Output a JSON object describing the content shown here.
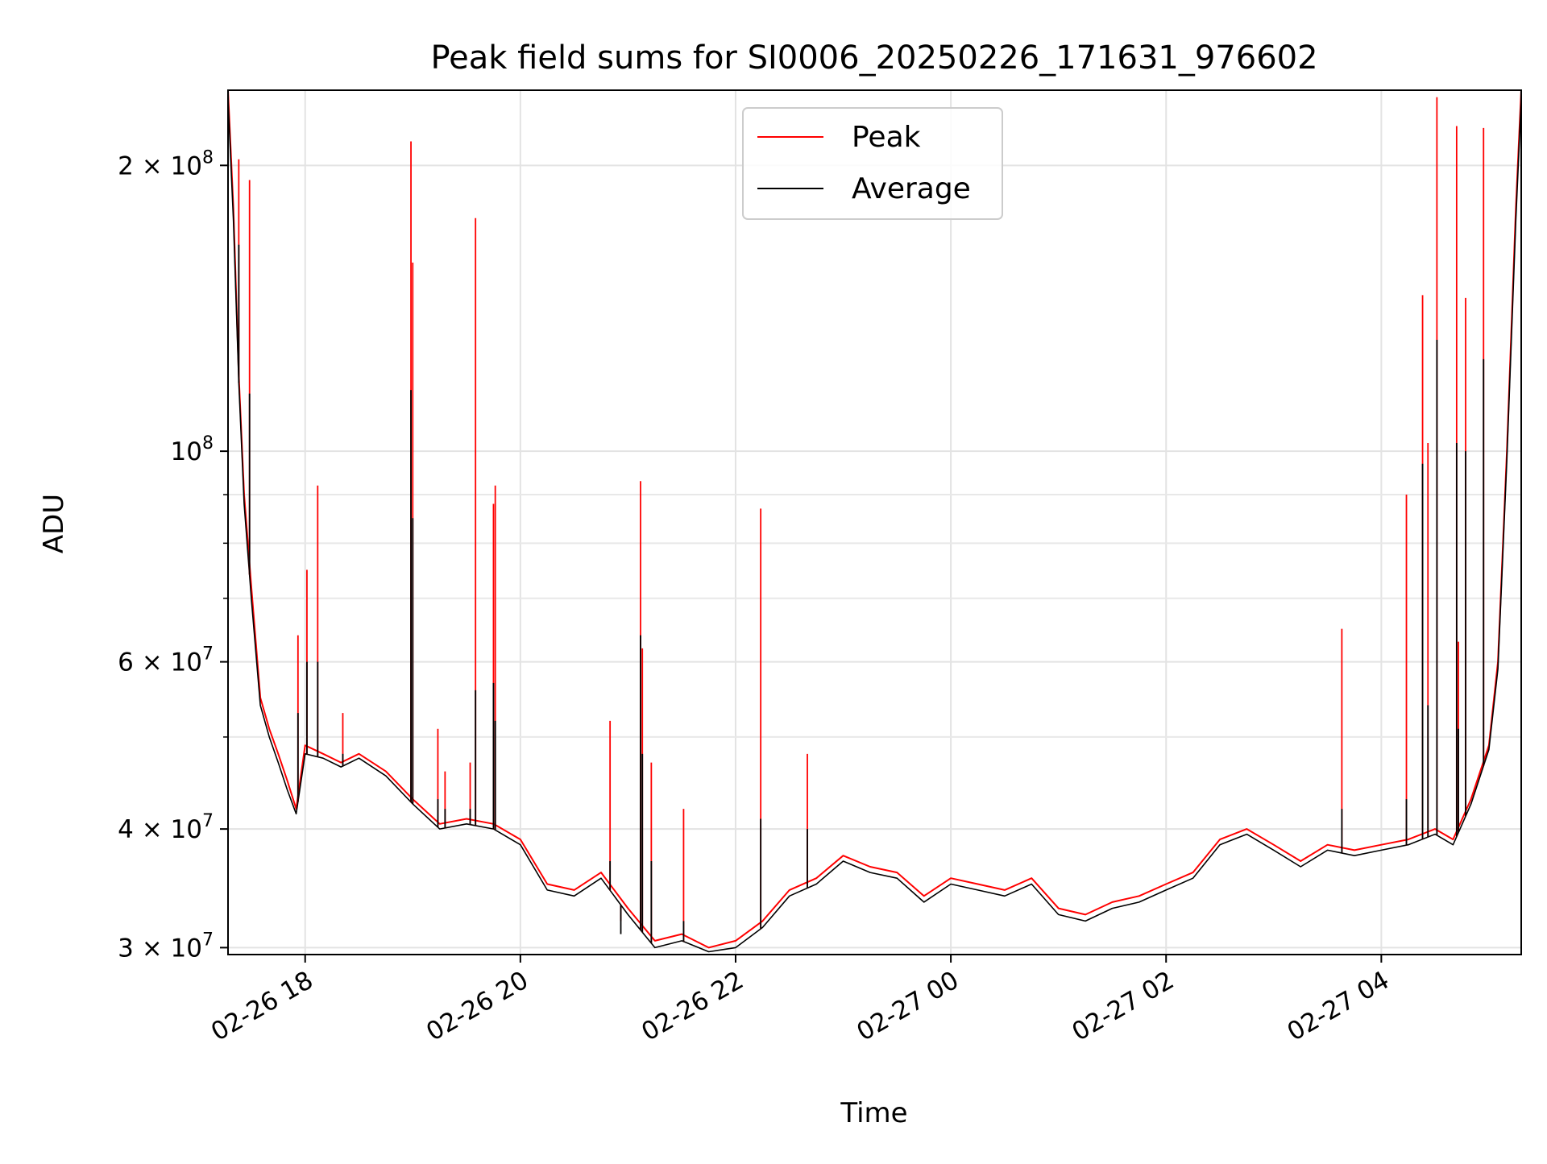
{
  "chart_data": {
    "type": "line",
    "title": "Peak field sums for SI0006_20250226_171631_976602",
    "xlabel": "Time",
    "ylabel": "ADU",
    "yscale": "log",
    "ylim": [
      29500000,
      240000000
    ],
    "xlim": [
      "2025-02-26T17:17",
      "2025-02-27T05:18"
    ],
    "grid": true,
    "legend_position": "upper center",
    "x_ticks": [
      {
        "t": "2025-02-26T18:00",
        "label": "02-26 18"
      },
      {
        "t": "2025-02-26T20:00",
        "label": "02-26 20"
      },
      {
        "t": "2025-02-26T22:00",
        "label": "02-26 22"
      },
      {
        "t": "2025-02-27T00:00",
        "label": "02-27 00"
      },
      {
        "t": "2025-02-27T02:00",
        "label": "02-27 02"
      },
      {
        "t": "2025-02-27T04:00",
        "label": "02-27 04"
      }
    ],
    "y_ticks": [
      {
        "v": 30000000,
        "base": "3 × 10",
        "exp": "7"
      },
      {
        "v": 40000000,
        "base": "4 × 10",
        "exp": "7"
      },
      {
        "v": 60000000,
        "base": "6 × 10",
        "exp": "7"
      },
      {
        "v": 100000000,
        "base": "10",
        "exp": "8"
      },
      {
        "v": 200000000,
        "base": "2 × 10",
        "exp": "8"
      }
    ],
    "y_minor_ticks": [
      50000000,
      70000000,
      80000000,
      90000000
    ],
    "series": [
      {
        "name": "Peak",
        "color": "#ff0000",
        "x": [
          "2025-02-26T17:17",
          "2025-02-26T17:20",
          "2025-02-26T17:23",
          "2025-02-26T17:26",
          "2025-02-26T17:30",
          "2025-02-26T17:35",
          "2025-02-26T17:40",
          "2025-02-26T17:45",
          "2025-02-26T17:50",
          "2025-02-26T17:55",
          "2025-02-26T18:00",
          "2025-02-26T18:10",
          "2025-02-26T18:20",
          "2025-02-26T18:30",
          "2025-02-26T18:45",
          "2025-02-26T19:00",
          "2025-02-26T19:15",
          "2025-02-26T19:30",
          "2025-02-26T19:45",
          "2025-02-26T20:00",
          "2025-02-26T20:15",
          "2025-02-26T20:30",
          "2025-02-26T20:45",
          "2025-02-26T21:00",
          "2025-02-26T21:15",
          "2025-02-26T21:30",
          "2025-02-26T21:45",
          "2025-02-26T22:00",
          "2025-02-26T22:15",
          "2025-02-26T22:30",
          "2025-02-26T22:45",
          "2025-02-26T23:00",
          "2025-02-26T23:15",
          "2025-02-26T23:30",
          "2025-02-26T23:45",
          "2025-02-27T00:00",
          "2025-02-27T00:15",
          "2025-02-27T00:30",
          "2025-02-27T00:45",
          "2025-02-27T01:00",
          "2025-02-27T01:15",
          "2025-02-27T01:30",
          "2025-02-27T01:45",
          "2025-02-27T02:00",
          "2025-02-27T02:15",
          "2025-02-27T02:30",
          "2025-02-27T02:45",
          "2025-02-27T03:00",
          "2025-02-27T03:15",
          "2025-02-27T03:30",
          "2025-02-27T03:45",
          "2025-02-27T04:00",
          "2025-02-27T04:15",
          "2025-02-27T04:30",
          "2025-02-27T04:40",
          "2025-02-27T04:50",
          "2025-02-27T05:00",
          "2025-02-27T05:05",
          "2025-02-27T05:10",
          "2025-02-27T05:15",
          "2025-02-27T05:18"
        ],
        "values": [
          240000000,
          180000000,
          120000000,
          90000000,
          72000000,
          55000000,
          51000000,
          48000000,
          45000000,
          42000000,
          49000000,
          48000000,
          47000000,
          48000000,
          46000000,
          43000000,
          40500000,
          41000000,
          40500000,
          39000000,
          35000000,
          34500000,
          36000000,
          33000000,
          30500000,
          31000000,
          30000000,
          30500000,
          32000000,
          34500000,
          35500000,
          37500000,
          36500000,
          36000000,
          34000000,
          35500000,
          35000000,
          34500000,
          35500000,
          33000000,
          32500000,
          33500000,
          34000000,
          35000000,
          36000000,
          39000000,
          40000000,
          38500000,
          37000000,
          38500000,
          38000000,
          38500000,
          39000000,
          40000000,
          39000000,
          43000000,
          49000000,
          60000000,
          100000000,
          180000000,
          240000000
        ]
      },
      {
        "name": "Average",
        "color": "#000000",
        "x": [
          "2025-02-26T17:17",
          "2025-02-26T17:20",
          "2025-02-26T17:23",
          "2025-02-26T17:26",
          "2025-02-26T17:30",
          "2025-02-26T17:35",
          "2025-02-26T17:40",
          "2025-02-26T17:45",
          "2025-02-26T17:50",
          "2025-02-26T17:55",
          "2025-02-26T18:00",
          "2025-02-26T18:10",
          "2025-02-26T18:20",
          "2025-02-26T18:30",
          "2025-02-26T18:45",
          "2025-02-26T19:00",
          "2025-02-26T19:15",
          "2025-02-26T19:30",
          "2025-02-26T19:45",
          "2025-02-26T20:00",
          "2025-02-26T20:15",
          "2025-02-26T20:30",
          "2025-02-26T20:45",
          "2025-02-26T21:00",
          "2025-02-26T21:15",
          "2025-02-26T21:30",
          "2025-02-26T21:45",
          "2025-02-26T22:00",
          "2025-02-26T22:15",
          "2025-02-26T22:30",
          "2025-02-26T22:45",
          "2025-02-26T23:00",
          "2025-02-26T23:15",
          "2025-02-26T23:30",
          "2025-02-26T23:45",
          "2025-02-27T00:00",
          "2025-02-27T00:15",
          "2025-02-27T00:30",
          "2025-02-27T00:45",
          "2025-02-27T01:00",
          "2025-02-27T01:15",
          "2025-02-27T01:30",
          "2025-02-27T01:45",
          "2025-02-27T02:00",
          "2025-02-27T02:15",
          "2025-02-27T02:30",
          "2025-02-27T02:45",
          "2025-02-27T03:00",
          "2025-02-27T03:15",
          "2025-02-27T03:30",
          "2025-02-27T03:45",
          "2025-02-27T04:00",
          "2025-02-27T04:15",
          "2025-02-27T04:30",
          "2025-02-27T04:40",
          "2025-02-27T04:50",
          "2025-02-27T05:00",
          "2025-02-27T05:05",
          "2025-02-27T05:10",
          "2025-02-27T05:15",
          "2025-02-27T05:18"
        ],
        "values": [
          235000000,
          175000000,
          118000000,
          88000000,
          70000000,
          54000000,
          50000000,
          47000000,
          44000000,
          41500000,
          48000000,
          47500000,
          46500000,
          47500000,
          45500000,
          42500000,
          40000000,
          40500000,
          40000000,
          38500000,
          34500000,
          34000000,
          35500000,
          32500000,
          30000000,
          30500000,
          29700000,
          30000000,
          31500000,
          34000000,
          35000000,
          37000000,
          36000000,
          35500000,
          33500000,
          35000000,
          34500000,
          34000000,
          35000000,
          32500000,
          32000000,
          33000000,
          33500000,
          34500000,
          35500000,
          38500000,
          39500000,
          38000000,
          36500000,
          38000000,
          37500000,
          38000000,
          38500000,
          39500000,
          38500000,
          42500000,
          48500000,
          59000000,
          98000000,
          175000000,
          235000000
        ]
      }
    ],
    "spikes": [
      {
        "t": "2025-02-26T17:23",
        "peak": 203000000,
        "avg": 165000000
      },
      {
        "t": "2025-02-26T17:29",
        "peak": 193000000,
        "avg": 115000000
      },
      {
        "t": "2025-02-26T17:56",
        "peak": 64000000,
        "avg": 53000000
      },
      {
        "t": "2025-02-26T18:01",
        "peak": 75000000,
        "avg": 60000000
      },
      {
        "t": "2025-02-26T18:07",
        "peak": 92000000,
        "avg": 60000000
      },
      {
        "t": "2025-02-26T18:21",
        "peak": 53000000,
        "avg": 48000000
      },
      {
        "t": "2025-02-26T18:59",
        "peak": 212000000,
        "avg": 116000000
      },
      {
        "t": "2025-02-26T19:00",
        "peak": 158000000,
        "avg": 85000000
      },
      {
        "t": "2025-02-26T19:14",
        "peak": 51000000,
        "avg": 43000000
      },
      {
        "t": "2025-02-26T19:18",
        "peak": 46000000,
        "avg": 42000000
      },
      {
        "t": "2025-02-26T19:32",
        "peak": 47000000,
        "avg": 42000000
      },
      {
        "t": "2025-02-26T19:35",
        "peak": 176000000,
        "avg": 56000000
      },
      {
        "t": "2025-02-26T19:45",
        "peak": 88000000,
        "avg": 57000000
      },
      {
        "t": "2025-02-26T19:46",
        "peak": 92000000,
        "avg": 52000000
      },
      {
        "t": "2025-02-26T20:50",
        "peak": 52000000,
        "avg": 37000000
      },
      {
        "t": "2025-02-26T20:56",
        "peak": 32000000,
        "avg": 31000000
      },
      {
        "t": "2025-02-26T21:07",
        "peak": 93000000,
        "avg": 64000000
      },
      {
        "t": "2025-02-26T21:08",
        "peak": 62000000,
        "avg": 48000000
      },
      {
        "t": "2025-02-26T21:13",
        "peak": 47000000,
        "avg": 37000000
      },
      {
        "t": "2025-02-26T21:31",
        "peak": 42000000,
        "avg": 32000000
      },
      {
        "t": "2025-02-26T22:14",
        "peak": 87000000,
        "avg": 41000000
      },
      {
        "t": "2025-02-26T22:40",
        "peak": 48000000,
        "avg": 40000000
      },
      {
        "t": "2025-02-27T03:38",
        "peak": 65000000,
        "avg": 42000000
      },
      {
        "t": "2025-02-27T04:14",
        "peak": 90000000,
        "avg": 43000000
      },
      {
        "t": "2025-02-27T04:23",
        "peak": 146000000,
        "avg": 97000000
      },
      {
        "t": "2025-02-27T04:26",
        "peak": 102000000,
        "avg": 54000000
      },
      {
        "t": "2025-02-27T04:31",
        "peak": 236000000,
        "avg": 131000000
      },
      {
        "t": "2025-02-27T04:42",
        "peak": 220000000,
        "avg": 102000000
      },
      {
        "t": "2025-02-27T04:43",
        "peak": 63000000,
        "avg": 51000000
      },
      {
        "t": "2025-02-27T04:47",
        "peak": 145000000,
        "avg": 100000000
      },
      {
        "t": "2025-02-27T04:57",
        "peak": 219000000,
        "avg": 125000000
      }
    ]
  }
}
